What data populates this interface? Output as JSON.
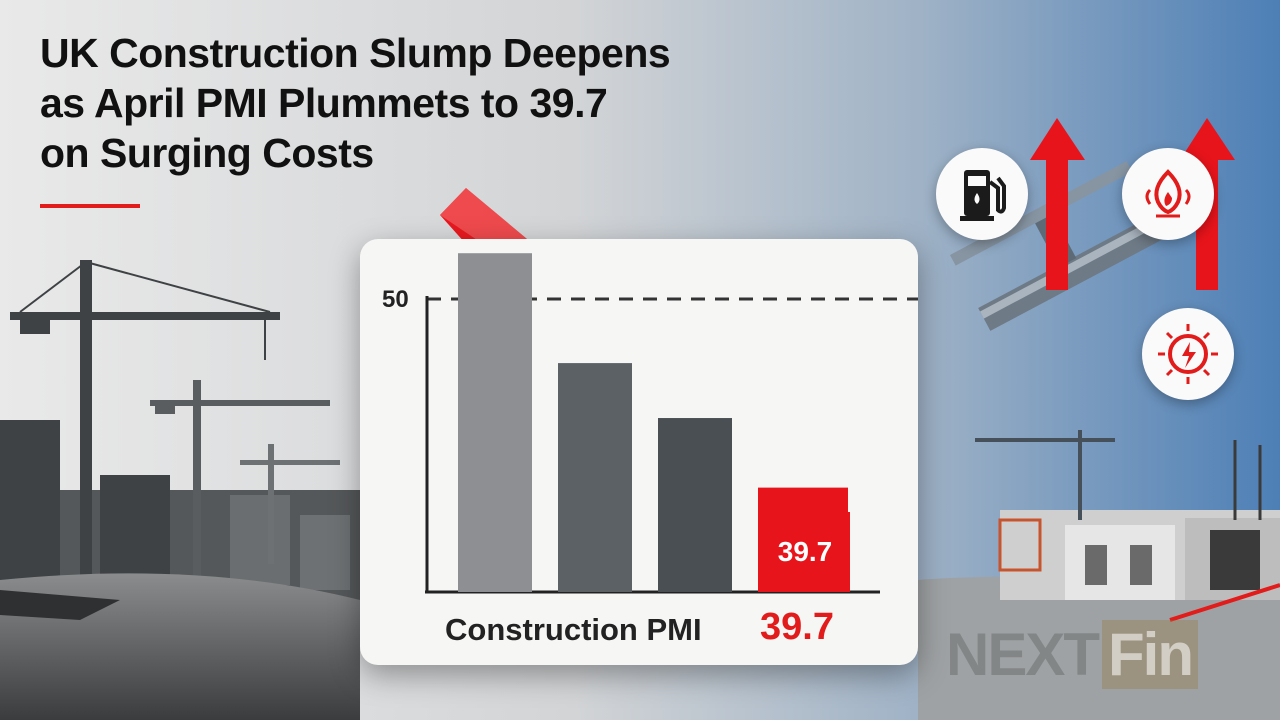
{
  "headline": {
    "lines": [
      "UK Construction Slump Deepens",
      "as April PMI Plummets to 39.7",
      "on Surging Costs"
    ]
  },
  "chart_data": {
    "type": "bar",
    "categories": [
      "",
      "",
      "",
      ""
    ],
    "values": [
      52.5,
      46.5,
      43.5,
      39.7
    ],
    "reference_line": 50,
    "yticks": [
      "50"
    ],
    "highlight_label": "39.7",
    "caption": "Construction PMI",
    "caption_value": "39.7",
    "colors": [
      "#8d8f92",
      "#5c6166",
      "#4a4f54",
      "#e8141b"
    ],
    "trend": "down"
  },
  "icons": [
    "fuel-pump-icon",
    "heating-flame-icon",
    "electricity-icon",
    "steel-beam-icon"
  ],
  "watermark": {
    "text_a": "NEXT",
    "text_b": "Fin"
  },
  "colors": {
    "accent": "#e21b1b",
    "headline": "#111111",
    "card": "#f6f6f5"
  }
}
